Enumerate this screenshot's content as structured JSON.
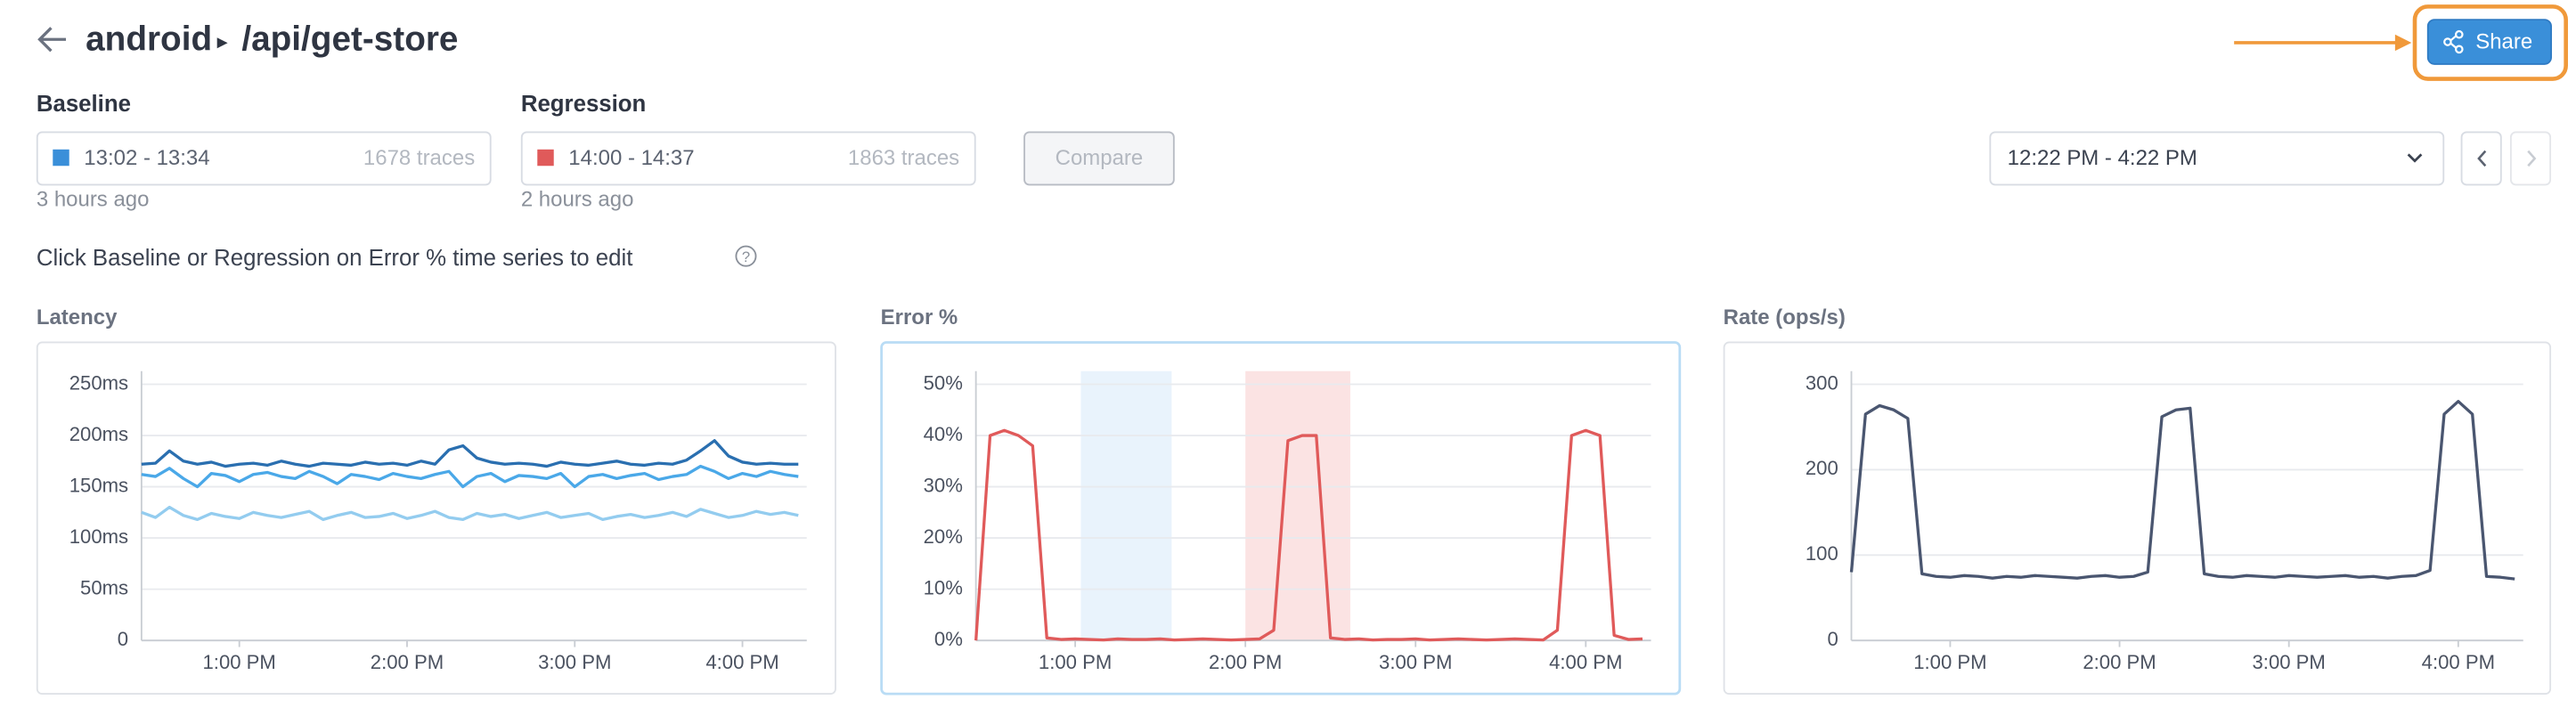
{
  "header": {
    "app": "android",
    "separator": "▸",
    "path": "/api/get-store",
    "share": "Share"
  },
  "baseline": {
    "label": "Baseline",
    "range": "13:02 - 13:34",
    "traces": "1678 traces",
    "age": "3 hours ago",
    "color": "#3a8fd9"
  },
  "regression": {
    "label": "Regression",
    "range": "14:00 - 14:37",
    "traces": "1863 traces",
    "age": "2 hours ago",
    "color": "#e05a5a"
  },
  "compare": "Compare",
  "time_range": "12:22 PM - 4:22 PM",
  "hint": "Click Baseline or Regression on Error % time series to edit",
  "chart_data": [
    {
      "type": "line",
      "title": "Latency",
      "x": [
        "12:25",
        "12:30",
        "12:35",
        "12:40",
        "12:45",
        "12:50",
        "12:55",
        "13:00",
        "13:05",
        "13:10",
        "13:15",
        "13:20",
        "13:25",
        "13:30",
        "13:35",
        "13:40",
        "13:45",
        "13:50",
        "13:55",
        "14:00",
        "14:05",
        "14:10",
        "14:15",
        "14:20",
        "14:25",
        "14:30",
        "14:35",
        "14:40",
        "14:45",
        "14:50",
        "14:55",
        "15:00",
        "15:05",
        "15:10",
        "15:15",
        "15:20",
        "15:25",
        "15:30",
        "15:35",
        "15:40",
        "15:45",
        "15:50",
        "15:55",
        "16:00",
        "16:05",
        "16:10",
        "16:15",
        "16:20"
      ],
      "series": [
        {
          "color": "#2a6fb0",
          "values": [
            172,
            173,
            185,
            175,
            172,
            174,
            170,
            172,
            173,
            171,
            175,
            172,
            170,
            173,
            172,
            171,
            174,
            172,
            173,
            171,
            175,
            172,
            186,
            190,
            178,
            174,
            172,
            173,
            172,
            170,
            174,
            172,
            171,
            173,
            175,
            172,
            171,
            173,
            172,
            176,
            185,
            195,
            180,
            174,
            172,
            173,
            172,
            172
          ]
        },
        {
          "color": "#4aa8e8",
          "values": [
            162,
            160,
            168,
            158,
            150,
            163,
            161,
            155,
            162,
            164,
            160,
            158,
            165,
            160,
            153,
            162,
            160,
            157,
            163,
            160,
            158,
            162,
            165,
            150,
            160,
            163,
            155,
            161,
            160,
            158,
            163,
            150,
            160,
            162,
            158,
            161,
            163,
            157,
            160,
            162,
            170,
            165,
            158,
            163,
            160,
            165,
            162,
            160
          ]
        },
        {
          "color": "#93ccef",
          "values": [
            125,
            120,
            130,
            122,
            118,
            124,
            121,
            119,
            125,
            122,
            120,
            123,
            126,
            118,
            122,
            125,
            120,
            121,
            124,
            119,
            122,
            126,
            120,
            118,
            124,
            121,
            123,
            119,
            122,
            125,
            120,
            122,
            124,
            118,
            121,
            123,
            120,
            122,
            125,
            121,
            128,
            124,
            120,
            122,
            126,
            123,
            125,
            122
          ]
        }
      ],
      "xlim": [
        "12:25",
        "16:23"
      ],
      "xticks": [
        {
          "value": "13:00",
          "label": "1:00 PM"
        },
        {
          "value": "14:00",
          "label": "2:00 PM"
        },
        {
          "value": "15:00",
          "label": "3:00 PM"
        },
        {
          "value": "16:00",
          "label": "4:00 PM"
        }
      ],
      "ylim": [
        0,
        250
      ],
      "yticks": [
        0,
        {
          "value": 50,
          "label": "50ms"
        },
        {
          "value": 100,
          "label": "100ms"
        },
        {
          "value": 150,
          "label": "150ms"
        },
        {
          "value": 200,
          "label": "200ms"
        },
        {
          "value": 250,
          "label": "250ms"
        }
      ],
      "grid": true
    },
    {
      "type": "line",
      "title": "Error %",
      "x": [
        "12:25",
        "12:30",
        "12:35",
        "12:40",
        "12:45",
        "12:50",
        "12:55",
        "13:00",
        "13:05",
        "13:10",
        "13:15",
        "13:20",
        "13:25",
        "13:30",
        "13:35",
        "13:40",
        "13:45",
        "13:50",
        "13:55",
        "14:00",
        "14:05",
        "14:10",
        "14:15",
        "14:20",
        "14:25",
        "14:30",
        "14:35",
        "14:40",
        "14:45",
        "14:50",
        "14:55",
        "15:00",
        "15:05",
        "15:10",
        "15:15",
        "15:20",
        "15:25",
        "15:30",
        "15:35",
        "15:40",
        "15:45",
        "15:50",
        "15:55",
        "16:00",
        "16:05",
        "16:10",
        "16:15",
        "16:20"
      ],
      "series": [
        {
          "color": "#e05a5a",
          "values": [
            0,
            40,
            41,
            40,
            38,
            0.5,
            0.2,
            0.3,
            0.2,
            0.1,
            0.3,
            0.2,
            0.2,
            0.3,
            0.1,
            0.2,
            0.3,
            0.2,
            0.1,
            0.2,
            0.3,
            2,
            39,
            40,
            40,
            0.5,
            0.2,
            0.3,
            0.1,
            0.2,
            0.2,
            0.3,
            0.1,
            0.2,
            0.3,
            0.2,
            0.1,
            0.2,
            0.3,
            0.2,
            0.1,
            2,
            40,
            41,
            40,
            1,
            0.2,
            0.3
          ]
        }
      ],
      "bands": [
        {
          "start": "13:02",
          "end": "13:34",
          "color": "#e9f3fc"
        },
        {
          "start": "14:00",
          "end": "14:37",
          "color": "#fbe3e3"
        }
      ],
      "xlim": [
        "12:25",
        "16:23"
      ],
      "xticks": [
        {
          "value": "13:00",
          "label": "1:00 PM"
        },
        {
          "value": "14:00",
          "label": "2:00 PM"
        },
        {
          "value": "15:00",
          "label": "3:00 PM"
        },
        {
          "value": "16:00",
          "label": "4:00 PM"
        }
      ],
      "ylim": [
        0,
        50
      ],
      "yticks": [
        {
          "value": 0,
          "label": "0%"
        },
        {
          "value": 10,
          "label": "10%"
        },
        {
          "value": 20,
          "label": "20%"
        },
        {
          "value": 30,
          "label": "30%"
        },
        {
          "value": 40,
          "label": "40%"
        },
        {
          "value": 50,
          "label": "50%"
        }
      ],
      "grid": true
    },
    {
      "type": "line",
      "title": "Rate (ops/s)",
      "x": [
        "12:25",
        "12:30",
        "12:35",
        "12:40",
        "12:45",
        "12:50",
        "12:55",
        "13:00",
        "13:05",
        "13:10",
        "13:15",
        "13:20",
        "13:25",
        "13:30",
        "13:35",
        "13:40",
        "13:45",
        "13:50",
        "13:55",
        "14:00",
        "14:05",
        "14:10",
        "14:15",
        "14:20",
        "14:25",
        "14:30",
        "14:35",
        "14:40",
        "14:45",
        "14:50",
        "14:55",
        "15:00",
        "15:05",
        "15:10",
        "15:15",
        "15:20",
        "15:25",
        "15:30",
        "15:35",
        "15:40",
        "15:45",
        "15:50",
        "15:55",
        "16:00",
        "16:05",
        "16:10",
        "16:15",
        "16:20"
      ],
      "series": [
        {
          "color": "#4a5670",
          "values": [
            80,
            265,
            275,
            270,
            260,
            78,
            75,
            74,
            76,
            75,
            73,
            75,
            74,
            76,
            75,
            74,
            73,
            75,
            76,
            74,
            75,
            80,
            262,
            270,
            272,
            78,
            75,
            74,
            76,
            75,
            74,
            76,
            75,
            74,
            75,
            76,
            74,
            75,
            73,
            75,
            76,
            82,
            265,
            280,
            265,
            75,
            74,
            72
          ]
        }
      ],
      "xlim": [
        "12:25",
        "16:23"
      ],
      "xticks": [
        {
          "value": "13:00",
          "label": "1:00 PM"
        },
        {
          "value": "14:00",
          "label": "2:00 PM"
        },
        {
          "value": "15:00",
          "label": "3:00 PM"
        },
        {
          "value": "16:00",
          "label": "4:00 PM"
        }
      ],
      "ylim": [
        0,
        300
      ],
      "yticks": [
        0,
        100,
        200,
        300
      ],
      "grid": true
    }
  ]
}
